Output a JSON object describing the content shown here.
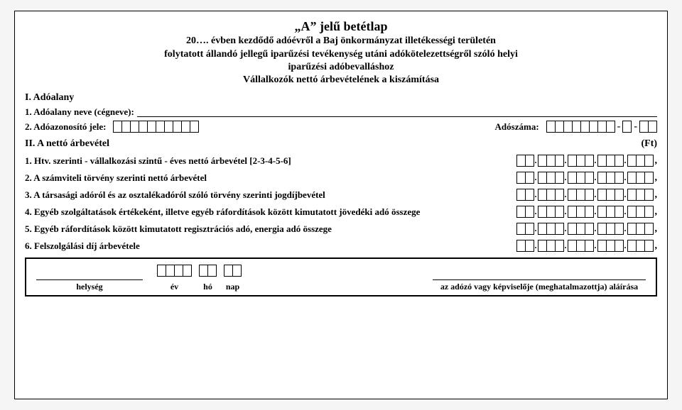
{
  "header": {
    "main_title": "„A” jelű betétlap",
    "line1": "20…. évben kezdődő adóévről a Baj önkormányzat illetékességi területén",
    "line2": "folytatott állandó jellegű iparűzési tevékenység utáni adókötelezettségről szóló helyi",
    "line3": "iparűzési adóbevalláshoz",
    "line4": "Vállalkozók nettó árbevételének a kiszámítása"
  },
  "section_I": {
    "title": "I. Adóalany",
    "name_label": "1. Adóalany neve (cégneve):",
    "id_label": "2. Adóazonosító jele:",
    "taxno_label": "Adószáma:",
    "id_boxes": 10,
    "taxno_parts": [
      8,
      1,
      2
    ]
  },
  "section_II": {
    "title": "II. A nettó árbevétel",
    "unit": "(Ft)",
    "money_groups": [
      2,
      3,
      3,
      3,
      3
    ],
    "items": [
      "1. Htv. szerinti - vállalkozási szintű - éves nettó árbevétel [2-3-4-5-6]",
      "2. A számviteli törvény szerinti nettó árbevétel",
      "3. A társasági adóról és az osztalékadóról szóló törvény szerinti jogdíjbevétel",
      "4. Egyéb szolgáltatások értékeként, illetve egyéb ráfordítások között kimutatott jövedéki adó összege",
      "5. Egyéb ráfordítások között kimutatott regisztrációs adó, energia adó összege",
      "6. Felszolgálási díj árbevétele"
    ]
  },
  "footer": {
    "place_label": "helység",
    "year_label": "év",
    "month_label": "hó",
    "day_label": "nap",
    "year_boxes": 4,
    "month_boxes": 2,
    "day_boxes": 2,
    "signature_label": "az adózó vagy képviselője (meghatalmazottja) aláírása"
  }
}
